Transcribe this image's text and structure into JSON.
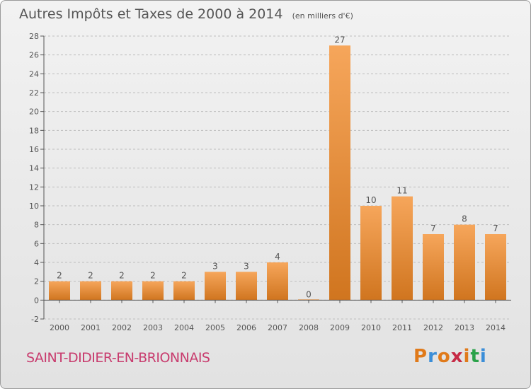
{
  "header": {
    "title": "Autres Impôts et Taxes de 2000 à 2014",
    "subtitle": "(en milliers d'€)"
  },
  "footer": {
    "town": "SAINT-DIDIER-EN-BRIONNAIS",
    "brand": "Proxiti",
    "brand_colors": [
      "#e07a1a",
      "#3b8ed8",
      "#e07a1a",
      "#c62a45",
      "#e07a1a",
      "#2aa24a",
      "#3b8ed8"
    ]
  },
  "colors": {
    "bar_top": "#f6a65b",
    "bar_bottom": "#d0751f",
    "axis": "#555555",
    "grid": "#bdbdbd",
    "text": "#555555"
  },
  "chart_data": {
    "type": "bar",
    "title": "Autres Impôts et Taxes de 2000 à 2014",
    "subtitle": "(en milliers d'€)",
    "categories": [
      "2000",
      "2001",
      "2002",
      "2003",
      "2004",
      "2005",
      "2006",
      "2007",
      "2008",
      "2009",
      "2010",
      "2011",
      "2012",
      "2013",
      "2014"
    ],
    "values": [
      2,
      2,
      2,
      2,
      2,
      3,
      3,
      4,
      0,
      27,
      10,
      11,
      7,
      8,
      7
    ],
    "value_labels": [
      "2",
      "2",
      "2",
      "2",
      "2",
      "3",
      "3",
      "4",
      "0",
      "27",
      "10",
      "11",
      "7",
      "8",
      "7"
    ],
    "yticks": [
      -2,
      0,
      2,
      4,
      6,
      8,
      10,
      12,
      14,
      16,
      18,
      20,
      22,
      24,
      26,
      28
    ],
    "ytick_labels": [
      "-2",
      "0",
      "2",
      "4",
      "6",
      "8",
      "10",
      "12",
      "14",
      "16",
      "18",
      "20",
      "22",
      "24",
      "26",
      "28"
    ],
    "ylim": [
      -2,
      28
    ],
    "grid": "horizontal dashed"
  }
}
